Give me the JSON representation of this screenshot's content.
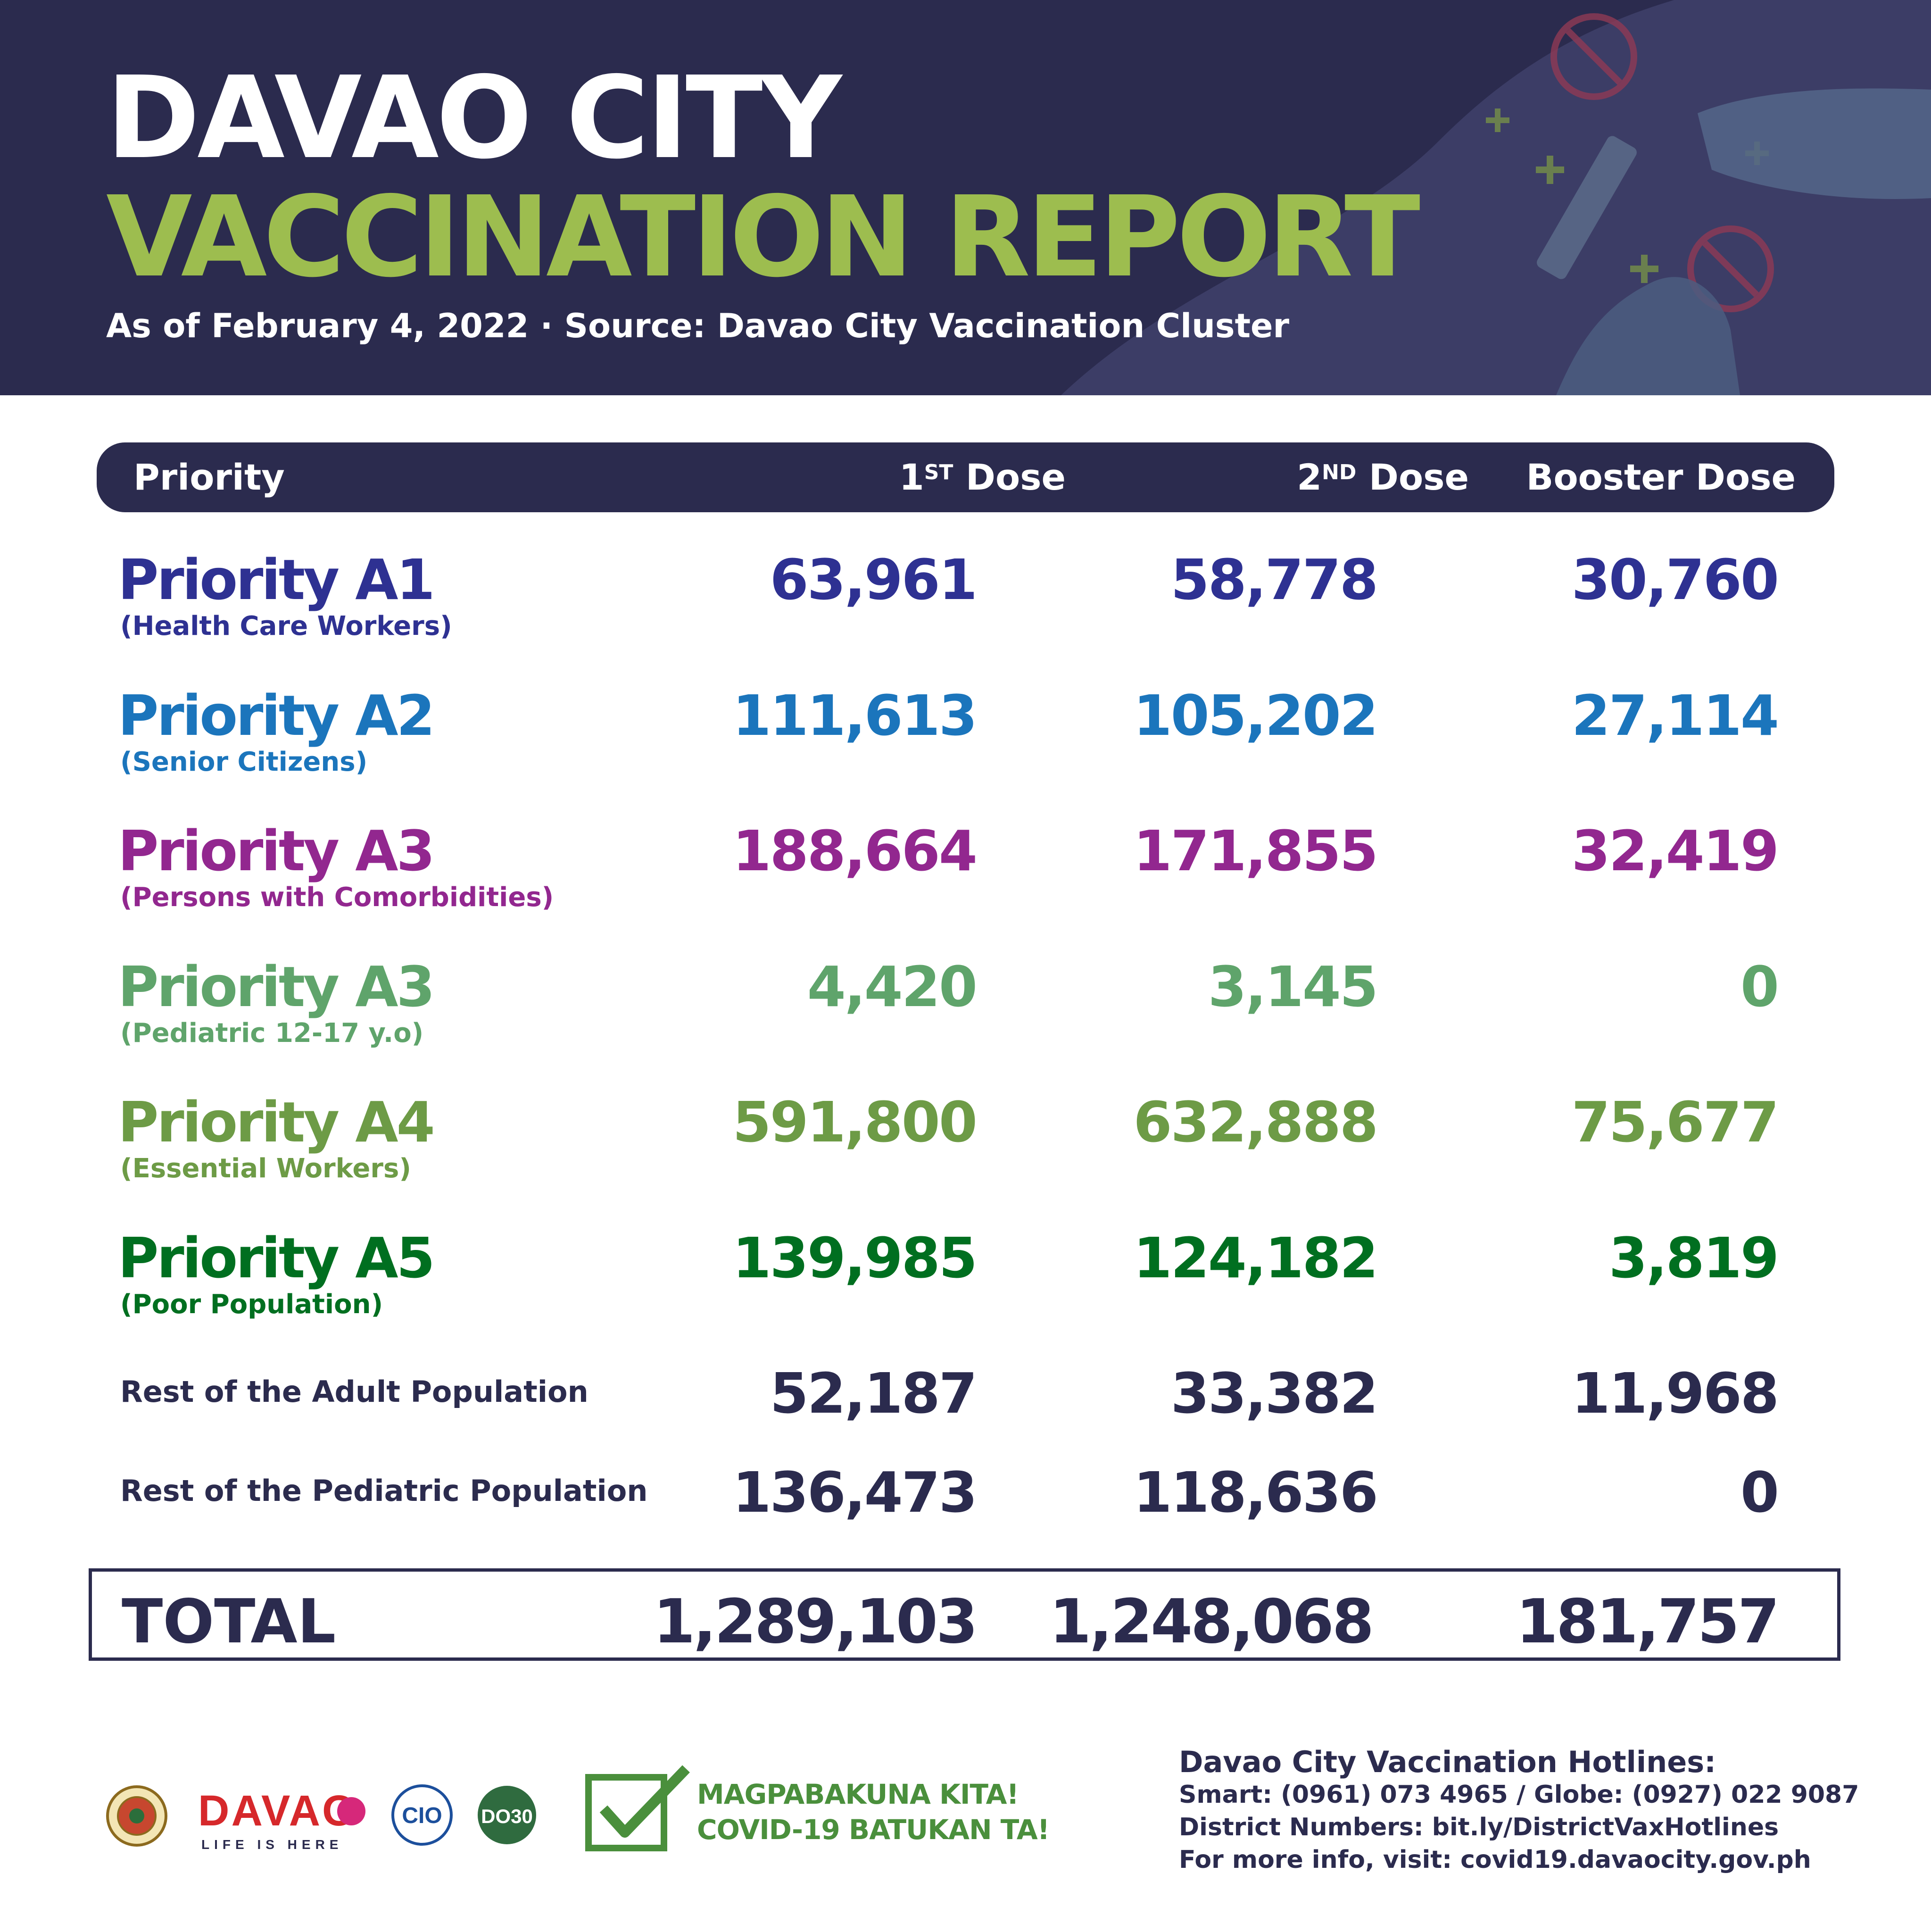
{
  "header": {
    "title_line1": "DAVAO CITY",
    "title_line2": "VACCINATION REPORT",
    "subtitle": "As of February 4, 2022 · Source: Davao City Vaccination Cluster"
  },
  "table": {
    "columns": {
      "priority": "Priority",
      "dose1": "1",
      "dose1_sup": "ST",
      "dose1_word": "Dose",
      "dose2": "2",
      "dose2_sup": "ND",
      "dose2_word": "Dose",
      "booster": "Booster Dose"
    },
    "rows": [
      {
        "name": "Priority A1",
        "sub": "(Health Care Workers)",
        "dose1": "63,961",
        "dose2": "58,778",
        "booster": "30,760",
        "color": "#2e3192"
      },
      {
        "name": "Priority A2",
        "sub": "(Senior Citizens)",
        "dose1": "111,613",
        "dose2": "105,202",
        "booster": "27,114",
        "color": "#1b75bc"
      },
      {
        "name": "Priority A3",
        "sub": "(Persons with Comorbidities)",
        "dose1": "188,664",
        "dose2": "171,855",
        "booster": "32,419",
        "color": "#92278f"
      },
      {
        "name": "Priority A3",
        "sub": "(Pediatric 12-17 y.o)",
        "dose1": "4,420",
        "dose2": "3,145",
        "booster": "0",
        "color": "#5fa46b"
      },
      {
        "name": "Priority A4",
        "sub": "(Essential Workers)",
        "dose1": "591,800",
        "dose2": "632,888",
        "booster": "75,677",
        "color": "#6d9b46"
      },
      {
        "name": "Priority A5",
        "sub": "(Poor Population)",
        "dose1": "139,985",
        "dose2": "124,182",
        "booster": "3,819",
        "color": "#006f20"
      }
    ],
    "rest": [
      {
        "name": "Rest of the Adult Population",
        "dose1": "52,187",
        "dose2": "33,382",
        "booster": "11,968"
      },
      {
        "name": "Rest of the Pediatric Population",
        "dose1": "136,473",
        "dose2": "118,636",
        "booster": "0"
      }
    ],
    "total": {
      "label": "TOTAL",
      "dose1": "1,289,103",
      "dose2": "1,248,068",
      "booster": "181,757"
    }
  },
  "footer": {
    "logos": [
      {
        "name": "seal-icon",
        "text": "LUNGSOD NG DABAW"
      },
      {
        "name": "davao-logo",
        "text": "DAVAO",
        "tagline": "LIFE IS HERE"
      },
      {
        "name": "cio-logo",
        "text": "CIO"
      },
      {
        "name": "dose-logo",
        "text": "DO30"
      }
    ],
    "slogan_line1": "MAGPABAKUNA KITA!",
    "slogan_line2": "COVID-19 BATUKAN TA!",
    "hotlines_title": "Davao City Vaccination Hotlines:",
    "hotlines": [
      "Smart: (0961) 073 4965 / Globe: (0927) 022 9087",
      "District Numbers: bit.ly/DistrictVaxHotlines",
      "For more info, visit: covid19.davaocity.gov.ph"
    ]
  },
  "colors": {
    "navy": "#2b2b4e",
    "accent_green": "#9dbd4f"
  }
}
